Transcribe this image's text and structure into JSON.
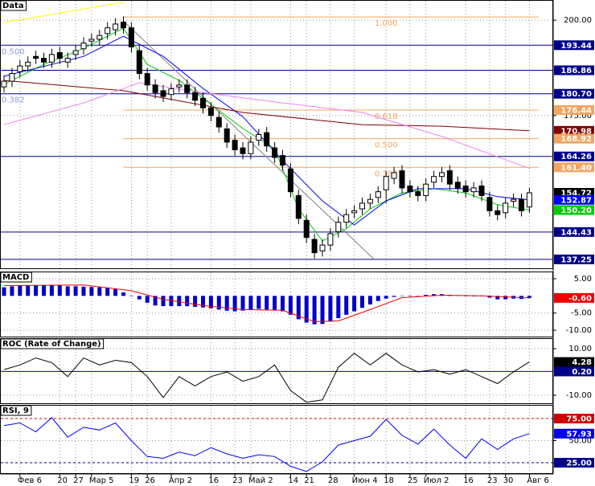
{
  "chart_data": [
    {
      "type": "candlestick",
      "title": "Data",
      "categories": [
        null,
        null,
        "Фев 6",
        null,
        null,
        null,
        null,
        "20",
        null,
        "27",
        null,
        "Мар 5",
        null,
        null,
        null,
        null,
        "19",
        null,
        "26",
        null,
        null,
        "Апр 2",
        null,
        null,
        null,
        null,
        "16",
        null,
        null,
        "23",
        null,
        "Май 2",
        null,
        null,
        null,
        null,
        "14",
        null,
        "21",
        null,
        null,
        "28",
        null,
        null,
        "Июн 4",
        null,
        null,
        null,
        "18",
        null,
        null,
        "25",
        null,
        "Июл 2",
        null,
        null,
        null,
        null,
        "16",
        null,
        null,
        "23",
        null,
        "30",
        null,
        null,
        "Авг 6"
      ],
      "open": [
        182.5,
        184,
        186.5,
        188,
        190.5,
        190,
        189,
        191.5,
        189,
        191,
        192.5,
        194.5,
        195,
        196.5,
        197.5,
        199.5,
        198,
        192,
        186,
        183,
        181.5,
        180.5,
        182.5,
        183,
        181,
        179.5,
        177,
        174.5,
        171.5,
        168.5,
        166.5,
        165,
        168.5,
        170.5,
        166.5,
        164.5,
        161,
        154,
        147.5,
        142.5,
        139.5,
        141,
        144.5,
        147,
        149.5,
        150.5,
        152,
        153.5,
        155.5,
        158.5,
        160.5,
        156.5,
        155,
        154,
        157.5,
        159,
        160.5,
        157.5,
        156.5,
        155,
        156.5,
        153.5,
        150,
        149.5,
        152.5,
        153,
        151
      ],
      "high": [
        185.5,
        187.5,
        189.5,
        190.5,
        192,
        191.5,
        192.5,
        193,
        191.5,
        193.5,
        195.5,
        196.5,
        197.5,
        199.5,
        200.5,
        201,
        199.5,
        193.5,
        187.5,
        184.5,
        183,
        183.5,
        184.5,
        184.5,
        182.5,
        181,
        178.5,
        176,
        173,
        170,
        168,
        169.5,
        171.5,
        172,
        168,
        166,
        162.5,
        155.5,
        149,
        144,
        142.5,
        145.5,
        148.5,
        150.5,
        151.5,
        153.5,
        154.5,
        156.5,
        160.5,
        161.5,
        162,
        158,
        156.5,
        158.5,
        160.5,
        161.5,
        162,
        159,
        158,
        157.5,
        158,
        155,
        151.5,
        153.5,
        154.5,
        154.5,
        156
      ],
      "low": [
        181,
        182.5,
        185,
        186.5,
        188.5,
        187.5,
        187.5,
        188.5,
        187.5,
        189.5,
        191,
        193,
        193.5,
        195,
        196,
        196.5,
        191.5,
        184.5,
        181.5,
        179.5,
        178.5,
        179,
        181,
        179.5,
        177.5,
        175.5,
        173.5,
        170.5,
        166.5,
        164.5,
        163.5,
        163.5,
        167,
        165.5,
        162.5,
        160.5,
        153.5,
        146.5,
        141.5,
        137.5,
        138,
        139.5,
        143,
        145.5,
        148,
        149,
        150.5,
        152,
        152,
        157,
        154.5,
        153.5,
        152.5,
        152.5,
        156,
        157.5,
        155.5,
        154.5,
        153.5,
        153.5,
        152.5,
        148.5,
        147.5,
        148,
        151,
        148.5,
        149.5
      ],
      "close": [
        184,
        186,
        188,
        189,
        190,
        189,
        191,
        190,
        190,
        192,
        194,
        195,
        196,
        198,
        199,
        198,
        193,
        186,
        183,
        181,
        180,
        182,
        183,
        181,
        179,
        177,
        175,
        172,
        168,
        166,
        165,
        168,
        170,
        167,
        164,
        162,
        155,
        148,
        143,
        139,
        141,
        144,
        147,
        149,
        150,
        152,
        153,
        155,
        159,
        160,
        156,
        155,
        154,
        157,
        159,
        160,
        157,
        156,
        155,
        156,
        154,
        150,
        149,
        152,
        153,
        150,
        154.72
      ],
      "ylim": [
        134.7,
        205.3
      ],
      "yticks": [
        {
          "value": 200,
          "label": "200.00"
        },
        {
          "value": 175,
          "label": "175.00"
        }
      ],
      "series": [
        {
          "color": "#00cc00",
          "x": [
            0,
            5,
            10,
            15,
            18,
            22,
            26,
            30,
            34,
            37,
            40,
            43,
            46,
            50,
            54,
            58,
            62,
            66
          ],
          "values": [
            183.2,
            188.4,
            192.6,
            197.9,
            188.4,
            184.2,
            177.9,
            171.6,
            166.3,
            150.5,
            142.1,
            145.3,
            150.5,
            154.7,
            155.8,
            154.7,
            151.6,
            150.2
          ]
        },
        {
          "color": "#0000ee",
          "x": [
            0,
            6,
            10,
            15,
            20,
            25,
            30,
            35,
            40,
            44,
            48,
            52,
            58,
            62,
            66
          ],
          "values": [
            185.3,
            188.4,
            190.5,
            195.8,
            190.5,
            182.1,
            174.7,
            163.2,
            152.6,
            146.3,
            152.6,
            155.8,
            155.8,
            153.7,
            152.87
          ]
        },
        {
          "color": "#800000",
          "x": [
            0,
            15,
            30,
            45,
            55,
            66
          ],
          "values": [
            184.2,
            181.5,
            175.8,
            172.6,
            172.2,
            170.98
          ]
        },
        {
          "color": "#ee82ee",
          "x": [
            0,
            10,
            17,
            25,
            35,
            45,
            55,
            66
          ],
          "values": [
            172.6,
            178.3,
            183.6,
            181,
            178.3,
            175.8,
            169.5,
            161.1
          ]
        }
      ],
      "levels": {
        "values": [
          193.44,
          186.86,
          180.7,
          164.26,
          144.43,
          137.25
        ],
        "color": "#00008b"
      },
      "fib": {
        "labels": [
          "1.000",
          "0.618",
          "0.500",
          "0.382"
        ],
        "values": [
          200.84,
          176.44,
          168.92,
          161.4
        ],
        "color": "#f4a460"
      },
      "fib2": {
        "labels": [
          "0.500",
          "0.382"
        ],
        "values": [
          193.44,
          180.7
        ],
        "color": "#8899dd"
      },
      "trendlines": [
        {
          "color": "#ffff00",
          "x": [
            0,
            15
          ],
          "values": [
            199.4,
            204.7
          ]
        },
        {
          "color": "#808080",
          "x": [
            15,
            46.5
          ],
          "values": [
            199.8,
            137.25
          ]
        }
      ],
      "tags": {
        "values": [
          193.44,
          186.86,
          180.7,
          176.44,
          170.98,
          168.92,
          164.26,
          161.4,
          154.72,
          152.87,
          150.2,
          144.43,
          137.25
        ],
        "value_labels": [
          "193.44",
          "186.86",
          "180.70",
          "176.44",
          "170.98",
          "168.92",
          "164.26",
          "161.40",
          "154.72",
          "152.87",
          "150.20",
          "144.43",
          "137.25"
        ],
        "colors": [
          "#00008b",
          "#00008b",
          "#00008b",
          "#f4a460",
          "#800000",
          "#f4a460",
          "#00008b",
          "#f4a460",
          "#000000",
          "#0000ee",
          "#00cc00",
          "#00008b",
          "#00008b"
        ]
      }
    },
    {
      "type": "macd",
      "title": "MACD",
      "values": [
        2.5,
        2.8,
        3,
        3,
        3,
        3,
        3,
        3,
        2.8,
        2.8,
        2.7,
        2.6,
        2.5,
        2.4,
        2,
        1,
        0,
        -1,
        -2,
        -2.8,
        -3,
        -3,
        -3,
        -3,
        -3.2,
        -3.4,
        -3.6,
        -4,
        -4.3,
        -4.5,
        -4.3,
        -4,
        -3.8,
        -4,
        -4.2,
        -4.5,
        -5.5,
        -6.8,
        -7.8,
        -8.3,
        -8.2,
        -7.5,
        -6.5,
        -5.5,
        -4.5,
        -3.5,
        -2.5,
        -1.5,
        -0.8,
        -0.3,
        0,
        0,
        0,
        0.3,
        0.5,
        0.5,
        0.3,
        0.2,
        0,
        0,
        0,
        -0.5,
        -1,
        -1,
        -0.8,
        -0.9,
        -0.6
      ],
      "color": "#0000cc",
      "signal": {
        "color": "#ee0000",
        "x": [
          0,
          10,
          16,
          20,
          25,
          30,
          35,
          39,
          42,
          46,
          50,
          55,
          60,
          66
        ],
        "values": [
          3,
          3.2,
          1.5,
          -1,
          -2.8,
          -4,
          -4.2,
          -7.5,
          -7.3,
          -4,
          -0.5,
          0.2,
          0,
          -0.6
        ]
      },
      "ylim": [
        -12.1,
        7.1
      ],
      "yticks": [
        {
          "value": 5,
          "label": "5.00"
        },
        {
          "value": -5,
          "label": "-5.00"
        },
        {
          "value": -10,
          "label": "-10.00"
        }
      ],
      "tags": {
        "values": [
          -0.6
        ],
        "value_labels": [
          "-0.60"
        ],
        "colors": [
          "#ee0000"
        ]
      }
    },
    {
      "type": "line",
      "title": "ROC (Rate of Change)",
      "x": [
        0,
        2,
        4,
        6,
        8,
        10,
        12,
        14,
        16,
        18,
        20,
        22,
        24,
        26,
        28,
        30,
        32,
        34,
        36,
        38,
        40,
        42,
        44,
        46,
        48,
        50,
        52,
        54,
        56,
        58,
        60,
        62,
        64,
        66
      ],
      "values": [
        1,
        3,
        6,
        4,
        -2,
        6,
        3,
        5,
        4,
        -2,
        -11,
        -2,
        -6,
        -2,
        0,
        -4,
        -2,
        3,
        -8,
        -13,
        -12,
        2,
        8,
        3,
        8,
        3,
        0,
        1,
        -1,
        1,
        -2,
        -5,
        0,
        4.28
      ],
      "color": "#000000",
      "ylim": [
        -13.8,
        14.5
      ],
      "yticks": [
        {
          "value": 10,
          "label": "10.00"
        },
        {
          "value": -10,
          "label": "-10.00"
        }
      ],
      "levels": {
        "values": [
          0.2
        ],
        "color": "#00008b"
      },
      "tags": {
        "values": [
          4.28,
          0.2
        ],
        "value_labels": [
          "4.28",
          "0.20"
        ],
        "colors": [
          "#000000",
          "#00008b"
        ]
      }
    },
    {
      "type": "line",
      "title": "RSI, 9",
      "x": [
        0,
        2,
        4,
        6,
        8,
        10,
        12,
        14,
        16,
        18,
        20,
        22,
        24,
        26,
        28,
        30,
        32,
        34,
        36,
        38,
        40,
        42,
        44,
        46,
        48,
        50,
        52,
        54,
        56,
        58,
        60,
        62,
        64,
        66
      ],
      "values": [
        67,
        70,
        60,
        76,
        54,
        65,
        62,
        70,
        50,
        32,
        30,
        37,
        33,
        42,
        35,
        30,
        34,
        32,
        21,
        15,
        26,
        45,
        50,
        55,
        74,
        56,
        46,
        63,
        45,
        30,
        52,
        40,
        52,
        57.93
      ],
      "color": "#0000ee",
      "ylim": [
        12.3,
        90.5
      ],
      "yticks": [
        {
          "value": 75,
          "label": "75.00"
        },
        {
          "value": 50,
          "label": "50.00"
        },
        {
          "value": 25,
          "label": "25.00"
        }
      ],
      "levels": {
        "values": [
          75,
          25
        ],
        "colors": [
          "#cc0000",
          "#00008b"
        ]
      },
      "tags": {
        "values": [
          75,
          57.93,
          25
        ],
        "value_labels": [
          "75.00",
          "57.93",
          "25.00"
        ],
        "colors": [
          "#cc0000",
          "#0000ee",
          "#00008b"
        ]
      }
    }
  ]
}
